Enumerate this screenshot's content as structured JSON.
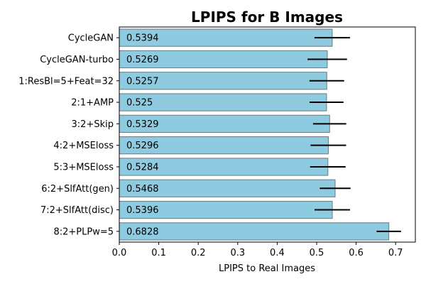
{
  "chart_data": {
    "type": "bar",
    "orientation": "horizontal",
    "title": "LPIPS for B Images",
    "xlabel": "LPIPS to Real Images",
    "ylabel": "",
    "xlim": [
      0,
      0.75
    ],
    "xticks": [
      "0.0",
      "0.1",
      "0.2",
      "0.3",
      "0.4",
      "0.5",
      "0.6",
      "0.7"
    ],
    "grid": false,
    "categories": [
      "CycleGAN",
      "CycleGAN-turbo",
      "1:ResBl=5+Feat=32",
      "2:1+AMP",
      "3:2+Skip",
      "4:2+MSEloss",
      "5:3+MSEloss",
      "6:2+SlfAtt(gen)",
      "7:2+SlfAtt(disc)",
      "8:2+PLPw=5"
    ],
    "values": [
      0.5394,
      0.5269,
      0.5257,
      0.525,
      0.5329,
      0.5296,
      0.5284,
      0.5468,
      0.5396,
      0.6828
    ],
    "value_labels": [
      "0.5394",
      "0.5269",
      "0.5257",
      "0.525",
      "0.5329",
      "0.5296",
      "0.5284",
      "0.5468",
      "0.5396",
      "0.6828"
    ],
    "errors": [
      0.045,
      0.05,
      0.044,
      0.043,
      0.042,
      0.045,
      0.045,
      0.039,
      0.045,
      0.031
    ],
    "colors": {
      "bar": "#8ecae0",
      "bar_edge": "#6b7b80",
      "error": "#000000"
    }
  }
}
